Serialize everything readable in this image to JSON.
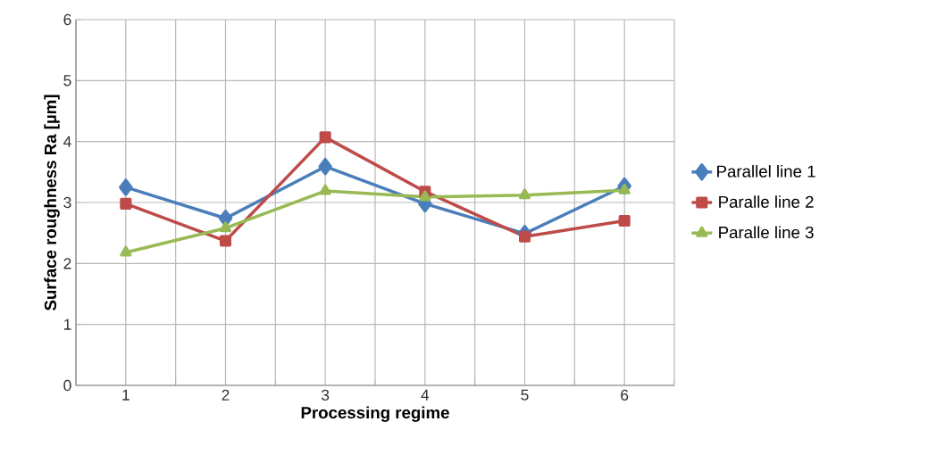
{
  "chart_data": {
    "type": "line",
    "xlabel": "Processing regime",
    "ylabel": "Surface roughness Ra [µm]",
    "categories": [
      "1",
      "2",
      "3",
      "4",
      "5",
      "6"
    ],
    "series": [
      {
        "name": "Parallel line 1",
        "color": "#4a7ebb",
        "marker": "diamond",
        "values": [
          3.25,
          2.74,
          3.59,
          2.98,
          2.49,
          3.27
        ]
      },
      {
        "name": "Paralle line 2",
        "color": "#be4b48",
        "marker": "square",
        "values": [
          2.98,
          2.37,
          4.07,
          3.18,
          2.44,
          2.7
        ]
      },
      {
        "name": "Paralle line 3",
        "color": "#98b954",
        "marker": "triangle",
        "values": [
          2.18,
          2.58,
          3.19,
          3.09,
          3.12,
          3.2
        ]
      }
    ],
    "ylim": [
      0,
      6
    ],
    "yticks": [
      0,
      1,
      2,
      3,
      4,
      5,
      6
    ],
    "grid": true,
    "legend": "right",
    "line_style": "solid"
  }
}
